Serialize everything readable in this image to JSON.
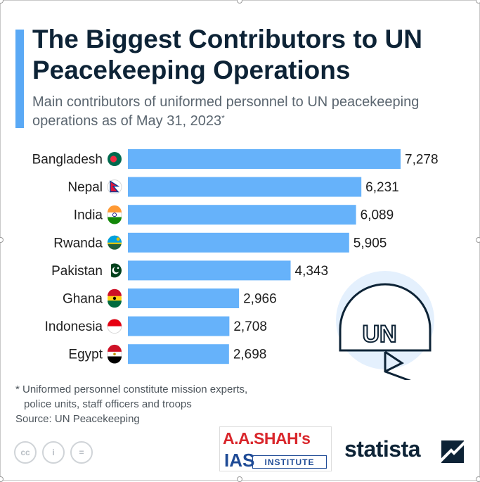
{
  "header": {
    "title": "The Biggest Contributors to UN Peacekeeping Operations",
    "subtitle": "Main contributors of uniformed personnel to UN peacekeeping operations as of May 31, 2023",
    "subtitle_mark": "*"
  },
  "chart_data": {
    "type": "bar",
    "orientation": "horizontal",
    "title": "The Biggest Contributors to UN Peacekeeping Operations",
    "categories": [
      "Bangladesh",
      "Nepal",
      "India",
      "Rwanda",
      "Pakistan",
      "Ghana",
      "Indonesia",
      "Egypt"
    ],
    "values": [
      7278,
      6231,
      6089,
      5905,
      4343,
      2966,
      2708,
      2698
    ],
    "value_labels": [
      "7,278",
      "6,231",
      "6,089",
      "5,905",
      "4,343",
      "2,966",
      "2,708",
      "2,698"
    ],
    "xlim": [
      0,
      7278
    ],
    "xlabel": "",
    "ylabel": "",
    "grid": false,
    "bar_color": "#66b2fa"
  },
  "illustration": {
    "helmet_text": "UN"
  },
  "footnote": {
    "line1": "* Uniformed personnel constitute mission experts,",
    "line2": "police units, staff officers and troops"
  },
  "source": "Source: UN Peacekeeping",
  "license_icons": {
    "cc": "cc",
    "by": "i",
    "nd": "="
  },
  "logos": {
    "ias_top": "A.A.SHAH's",
    "ias_mid": "IAS",
    "ias_institute": "INSTITUTE",
    "statista": "statista"
  },
  "colors": {
    "accent": "#5aa9f5",
    "bar": "#66b2fa",
    "title": "#0d2336",
    "muted": "#5b6670"
  }
}
